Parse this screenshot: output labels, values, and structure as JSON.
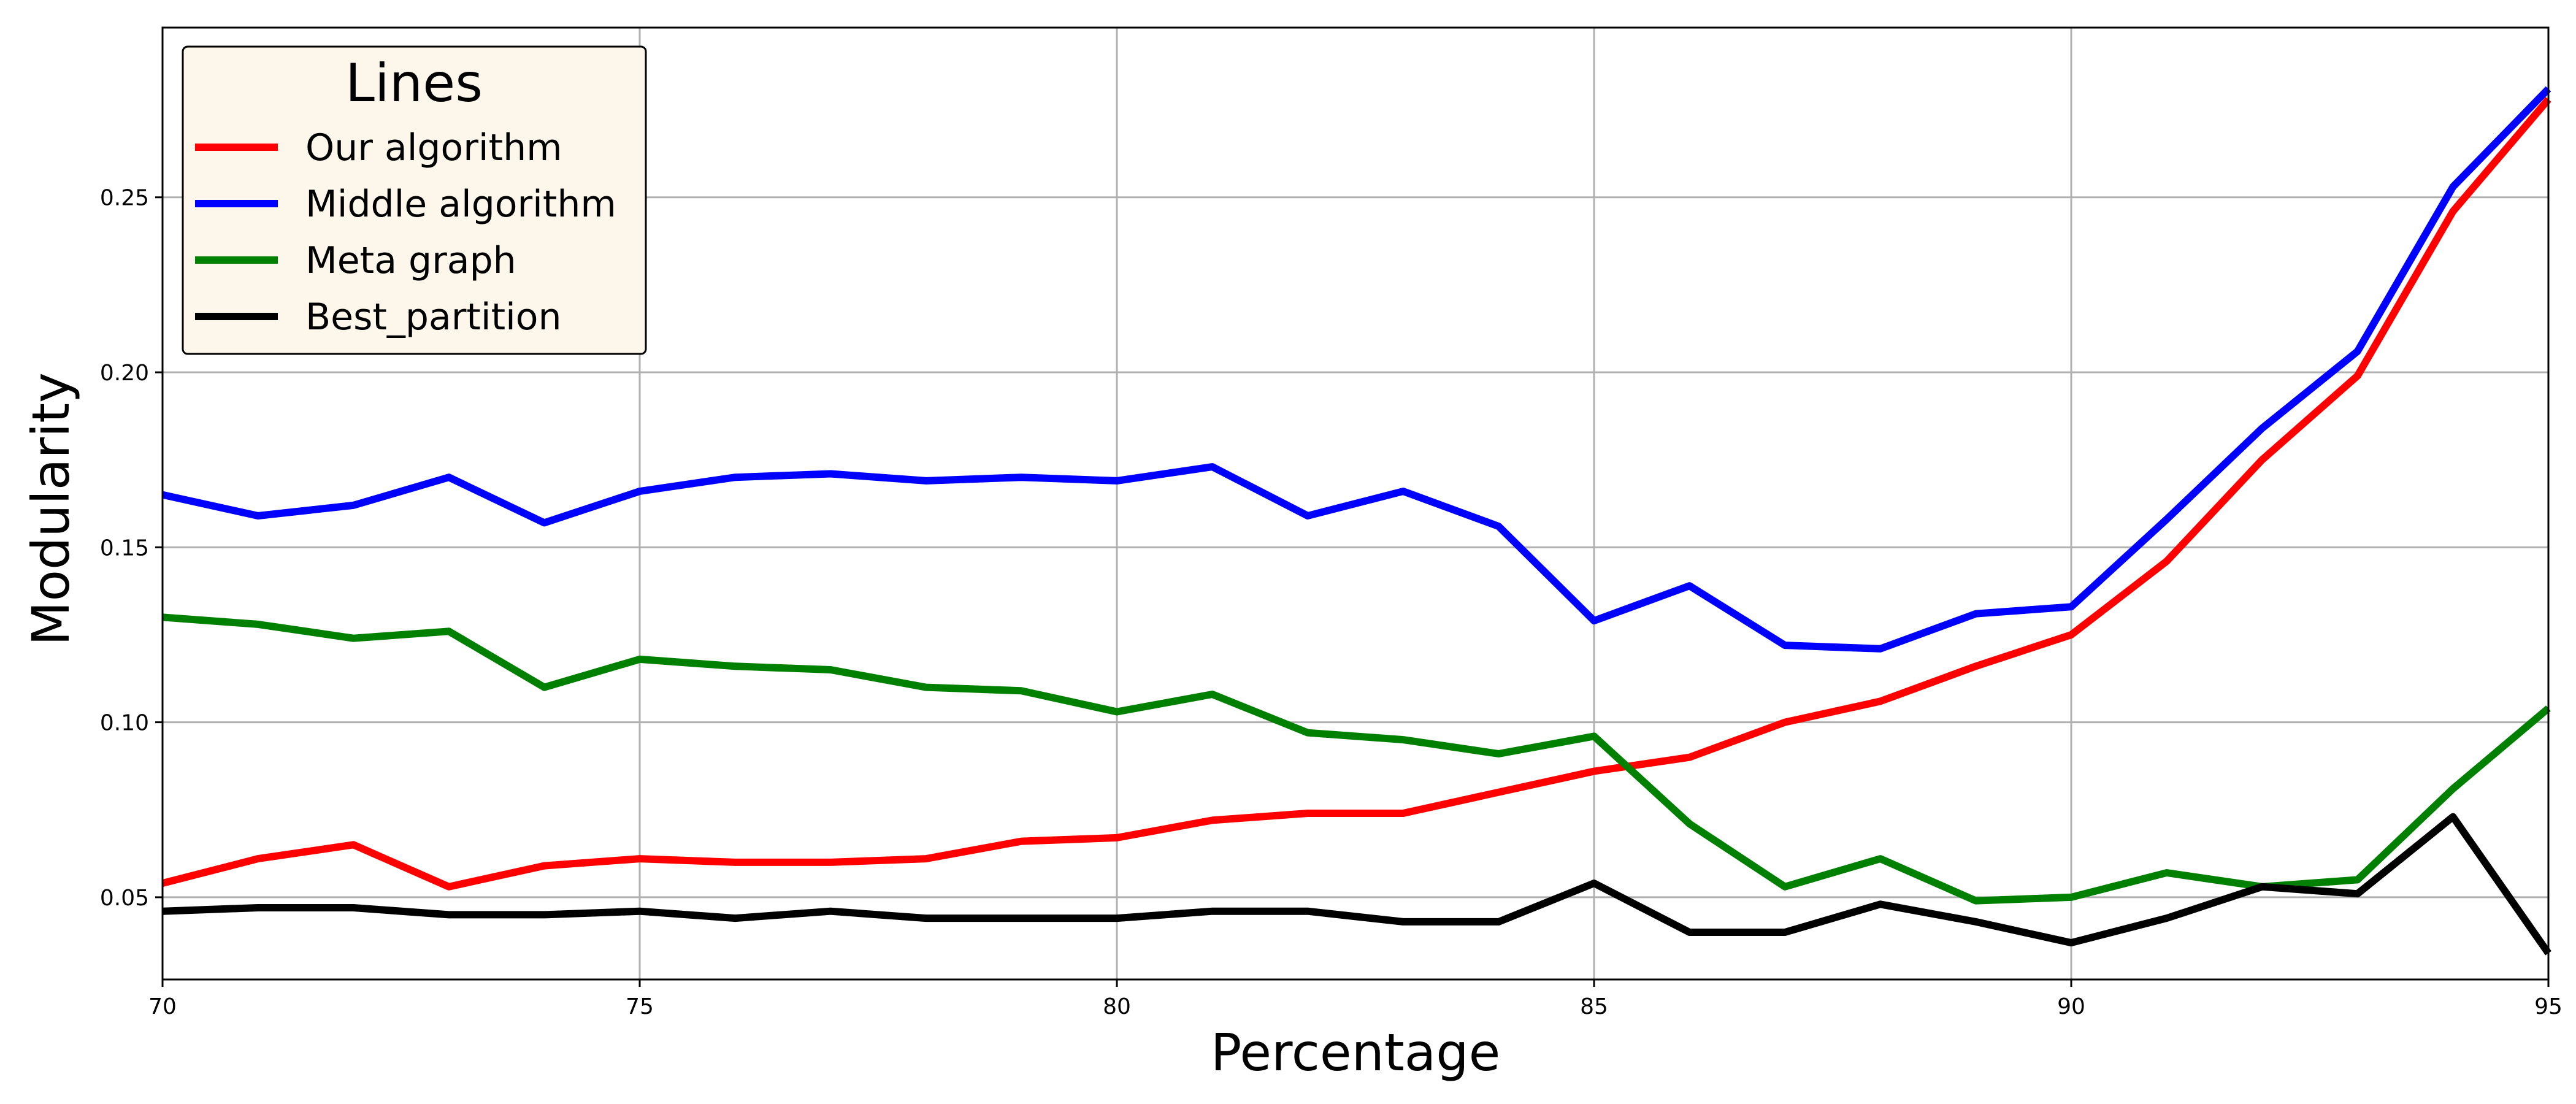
{
  "chart_data": {
    "type": "line",
    "title": "",
    "xlabel": "Percentage",
    "ylabel": "Modularity",
    "xlim": [
      70,
      95
    ],
    "ylim": [
      0.0265,
      0.2985
    ],
    "x_ticks": [
      70,
      75,
      80,
      85,
      90,
      95
    ],
    "y_ticks": [
      0.05,
      0.1,
      0.15,
      0.2,
      0.25
    ],
    "y_tick_labels": [
      "0.05",
      "0.10",
      "0.15",
      "0.20",
      "0.25"
    ],
    "grid": true,
    "legend": {
      "title": "Lines",
      "placement": "top-left"
    },
    "x": [
      70,
      71,
      72,
      73,
      74,
      75,
      76,
      77,
      78,
      79,
      80,
      81,
      82,
      83,
      84,
      85,
      86,
      87,
      88,
      89,
      90,
      91,
      92,
      93,
      94,
      95
    ],
    "series": [
      {
        "name": "Our algorithm",
        "color": "#ff0000",
        "values": [
          0.054,
          0.061,
          0.065,
          0.053,
          0.059,
          0.061,
          0.06,
          0.06,
          0.061,
          0.066,
          0.067,
          0.072,
          0.074,
          0.074,
          0.08,
          0.086,
          0.09,
          0.1,
          0.106,
          0.116,
          0.125,
          0.146,
          0.175,
          0.199,
          0.246,
          0.278
        ]
      },
      {
        "name": "Middle algorithm",
        "color": "#0000ff",
        "values": [
          0.165,
          0.159,
          0.162,
          0.17,
          0.157,
          0.166,
          0.17,
          0.171,
          0.169,
          0.17,
          0.169,
          0.173,
          0.159,
          0.166,
          0.156,
          0.129,
          0.139,
          0.122,
          0.121,
          0.131,
          0.133,
          0.158,
          0.184,
          0.206,
          0.253,
          0.281
        ]
      },
      {
        "name": "Meta graph",
        "color": "#008000",
        "values": [
          0.13,
          0.128,
          0.124,
          0.126,
          0.11,
          0.118,
          0.116,
          0.115,
          0.11,
          0.109,
          0.103,
          0.108,
          0.097,
          0.095,
          0.091,
          0.096,
          0.071,
          0.053,
          0.061,
          0.049,
          0.05,
          0.057,
          0.053,
          0.055,
          0.081,
          0.104
        ]
      },
      {
        "name": "Best_partition",
        "color": "#000000",
        "values": [
          0.046,
          0.047,
          0.047,
          0.045,
          0.045,
          0.046,
          0.044,
          0.046,
          0.044,
          0.044,
          0.044,
          0.046,
          0.046,
          0.043,
          0.043,
          0.054,
          0.04,
          0.04,
          0.048,
          0.043,
          0.037,
          0.044,
          0.053,
          0.051,
          0.073,
          0.034
        ]
      }
    ]
  }
}
